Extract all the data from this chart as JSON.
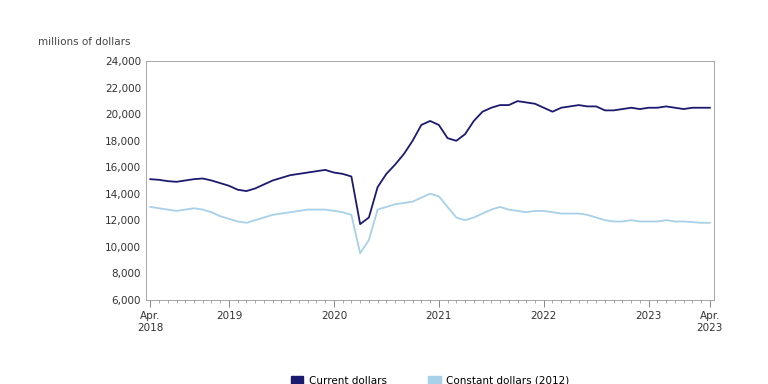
{
  "ylabel": "millions of dollars",
  "ylim": [
    6000,
    24000
  ],
  "yticks": [
    6000,
    8000,
    10000,
    12000,
    14000,
    16000,
    18000,
    20000,
    22000,
    24000
  ],
  "color_current": "#1a1a6e",
  "color_constant": "#a8d0e8",
  "legend_labels": [
    "Current dollars",
    "Constant dollars (2012)"
  ],
  "current_dollars": [
    15100,
    15050,
    14950,
    14900,
    15000,
    15100,
    15150,
    15000,
    14800,
    14600,
    14300,
    14200,
    14400,
    14700,
    15000,
    15200,
    15400,
    15500,
    15600,
    15700,
    15800,
    15600,
    15500,
    15300,
    11700,
    12200,
    14500,
    15500,
    16200,
    17000,
    18000,
    19200,
    19500,
    19200,
    18200,
    18000,
    18500,
    19500,
    20200,
    20500,
    20700,
    20700,
    21000,
    20900,
    20800,
    20500,
    20200,
    20500,
    20600,
    20700,
    20600,
    20600,
    20300,
    20300,
    20400,
    20500,
    20400,
    20500,
    20500,
    20600,
    20500,
    20400,
    20500,
    20500,
    20500
  ],
  "constant_dollars": [
    13000,
    12900,
    12800,
    12700,
    12800,
    12900,
    12800,
    12600,
    12300,
    12100,
    11900,
    11800,
    12000,
    12200,
    12400,
    12500,
    12600,
    12700,
    12800,
    12800,
    12800,
    12700,
    12600,
    12400,
    9500,
    10500,
    12800,
    13000,
    13200,
    13300,
    13400,
    13700,
    14000,
    13800,
    13000,
    12200,
    12000,
    12200,
    12500,
    12800,
    13000,
    12800,
    12700,
    12600,
    12700,
    12700,
    12600,
    12500,
    12500,
    12500,
    12400,
    12200,
    12000,
    11900,
    11900,
    12000,
    11900,
    11900,
    11900,
    12000,
    11900,
    11900,
    11850,
    11800,
    11800
  ],
  "background_color": "#ffffff",
  "plot_bg_color": "#ffffff",
  "border_color": "#999999"
}
